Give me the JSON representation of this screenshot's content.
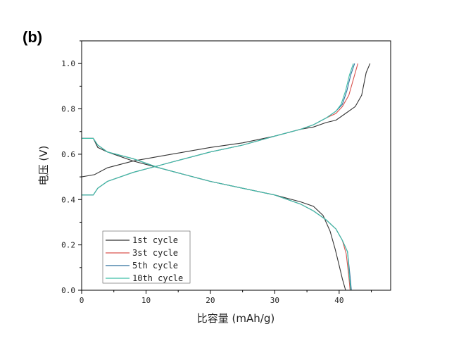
{
  "chart_data": {
    "type": "line",
    "panel_label": "(b)",
    "xlabel": "比容量 (mAh/g)",
    "ylabel": "电压 (V)",
    "xlim": [
      0,
      48
    ],
    "ylim": [
      0,
      1.1
    ],
    "x_ticks": [
      0,
      10,
      20,
      30,
      40
    ],
    "y_ticks": [
      0.0,
      0.2,
      0.4,
      0.6,
      0.8,
      1.0
    ],
    "legend_position": "bottom-left",
    "grid": false,
    "series": [
      {
        "name": "1st cycle",
        "color": "#333333",
        "charge": [
          [
            0,
            0.5
          ],
          [
            2,
            0.51
          ],
          [
            4,
            0.54
          ],
          [
            8,
            0.57
          ],
          [
            12,
            0.59
          ],
          [
            16,
            0.61
          ],
          [
            20,
            0.63
          ],
          [
            25,
            0.65
          ],
          [
            30,
            0.68
          ],
          [
            34,
            0.71
          ],
          [
            36,
            0.72
          ],
          [
            38,
            0.74
          ],
          [
            39.5,
            0.75
          ],
          [
            41,
            0.78
          ],
          [
            42.5,
            0.81
          ],
          [
            43.5,
            0.86
          ],
          [
            44.2,
            0.96
          ],
          [
            44.8,
            1.0
          ]
        ],
        "discharge": [
          [
            0,
            0.67
          ],
          [
            1.8,
            0.67
          ],
          [
            2.5,
            0.63
          ],
          [
            4,
            0.61
          ],
          [
            8,
            0.57
          ],
          [
            12,
            0.54
          ],
          [
            16,
            0.51
          ],
          [
            20,
            0.48
          ],
          [
            25,
            0.45
          ],
          [
            30,
            0.42
          ],
          [
            34,
            0.39
          ],
          [
            36,
            0.37
          ],
          [
            37.5,
            0.33
          ],
          [
            38.6,
            0.26
          ],
          [
            39.4,
            0.18
          ],
          [
            40,
            0.11
          ],
          [
            40.5,
            0.05
          ],
          [
            41,
            0.0
          ]
        ]
      },
      {
        "name": "3st cycle",
        "color": "#d9534f",
        "charge": [
          [
            0,
            0.42
          ],
          [
            1.8,
            0.42
          ],
          [
            2.5,
            0.45
          ],
          [
            4,
            0.48
          ],
          [
            8,
            0.52
          ],
          [
            12,
            0.55
          ],
          [
            16,
            0.58
          ],
          [
            20,
            0.61
          ],
          [
            25,
            0.64
          ],
          [
            30,
            0.68
          ],
          [
            34,
            0.71
          ],
          [
            36,
            0.73
          ],
          [
            38,
            0.76
          ],
          [
            39.5,
            0.78
          ],
          [
            40.5,
            0.81
          ],
          [
            41.5,
            0.86
          ],
          [
            42.2,
            0.93
          ],
          [
            42.9,
            1.0
          ]
        ],
        "discharge": [
          [
            0,
            0.67
          ],
          [
            1.8,
            0.67
          ],
          [
            2.5,
            0.64
          ],
          [
            4,
            0.61
          ],
          [
            8,
            0.58
          ],
          [
            12,
            0.54
          ],
          [
            16,
            0.51
          ],
          [
            20,
            0.48
          ],
          [
            25,
            0.45
          ],
          [
            30,
            0.42
          ],
          [
            34,
            0.38
          ],
          [
            36,
            0.35
          ],
          [
            38,
            0.31
          ],
          [
            39.5,
            0.27
          ],
          [
            40.5,
            0.22
          ],
          [
            41.1,
            0.16
          ],
          [
            41.5,
            0.06
          ],
          [
            41.7,
            0.0
          ]
        ]
      },
      {
        "name": "5th cycle",
        "color": "#2e6f9e",
        "charge": [
          [
            0,
            0.42
          ],
          [
            1.8,
            0.42
          ],
          [
            2.5,
            0.45
          ],
          [
            4,
            0.48
          ],
          [
            8,
            0.52
          ],
          [
            12,
            0.55
          ],
          [
            16,
            0.58
          ],
          [
            20,
            0.61
          ],
          [
            25,
            0.64
          ],
          [
            30,
            0.68
          ],
          [
            34,
            0.71
          ],
          [
            36,
            0.73
          ],
          [
            38,
            0.76
          ],
          [
            39.5,
            0.79
          ],
          [
            40.5,
            0.82
          ],
          [
            41.2,
            0.88
          ],
          [
            41.8,
            0.95
          ],
          [
            42.4,
            1.0
          ]
        ],
        "discharge": [
          [
            0,
            0.67
          ],
          [
            1.8,
            0.67
          ],
          [
            2.5,
            0.64
          ],
          [
            4,
            0.61
          ],
          [
            8,
            0.58
          ],
          [
            12,
            0.54
          ],
          [
            16,
            0.51
          ],
          [
            20,
            0.48
          ],
          [
            25,
            0.45
          ],
          [
            30,
            0.42
          ],
          [
            34,
            0.38
          ],
          [
            36,
            0.35
          ],
          [
            38,
            0.31
          ],
          [
            39.5,
            0.27
          ],
          [
            40.5,
            0.22
          ],
          [
            41.3,
            0.17
          ],
          [
            41.7,
            0.06
          ],
          [
            41.9,
            0.0
          ]
        ]
      },
      {
        "name": "10th cycle",
        "color": "#3fbfa8",
        "charge": [
          [
            0,
            0.42
          ],
          [
            1.8,
            0.42
          ],
          [
            2.5,
            0.45
          ],
          [
            4,
            0.48
          ],
          [
            8,
            0.52
          ],
          [
            12,
            0.55
          ],
          [
            16,
            0.58
          ],
          [
            20,
            0.61
          ],
          [
            25,
            0.64
          ],
          [
            30,
            0.68
          ],
          [
            34,
            0.71
          ],
          [
            36,
            0.73
          ],
          [
            38,
            0.76
          ],
          [
            39.5,
            0.79
          ],
          [
            40.3,
            0.82
          ],
          [
            41,
            0.88
          ],
          [
            41.6,
            0.95
          ],
          [
            42.2,
            1.0
          ]
        ],
        "discharge": [
          [
            0,
            0.67
          ],
          [
            1.8,
            0.67
          ],
          [
            2.5,
            0.64
          ],
          [
            4,
            0.61
          ],
          [
            8,
            0.58
          ],
          [
            12,
            0.54
          ],
          [
            16,
            0.51
          ],
          [
            20,
            0.48
          ],
          [
            25,
            0.45
          ],
          [
            30,
            0.42
          ],
          [
            34,
            0.38
          ],
          [
            36,
            0.35
          ],
          [
            38,
            0.31
          ],
          [
            39.5,
            0.27
          ],
          [
            40.5,
            0.22
          ],
          [
            41.3,
            0.17
          ],
          [
            41.6,
            0.06
          ],
          [
            41.8,
            0.0
          ]
        ]
      }
    ]
  }
}
